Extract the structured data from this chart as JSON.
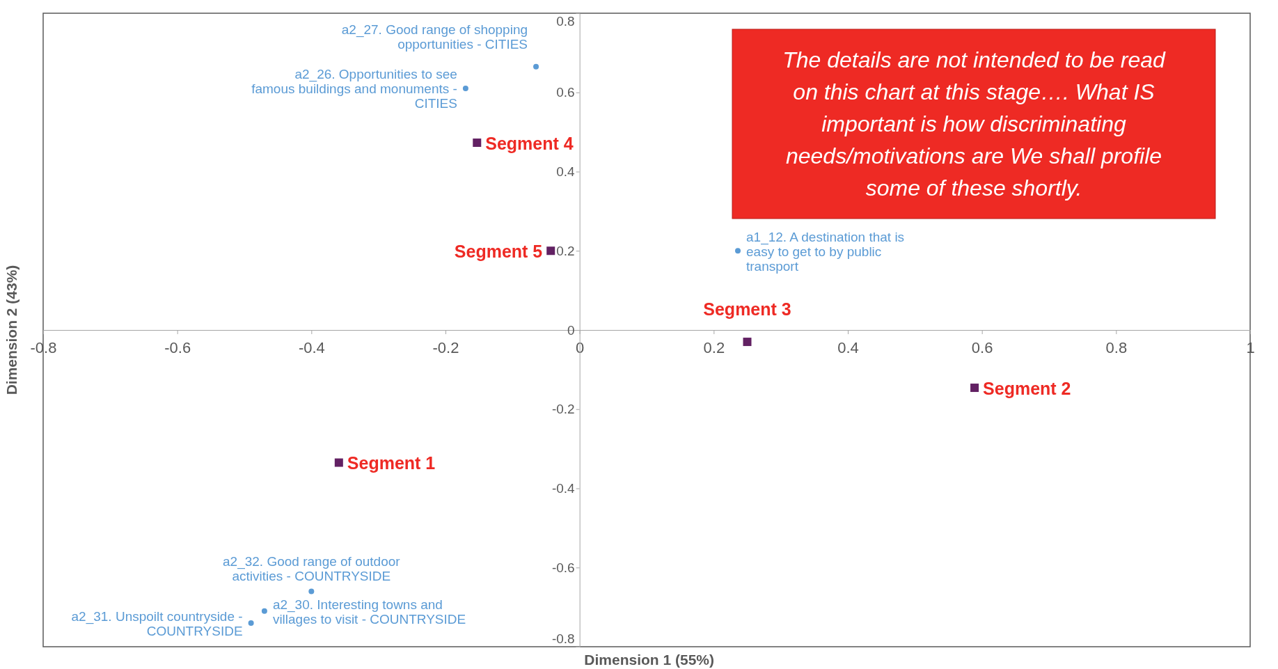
{
  "chart_data": {
    "type": "scatter",
    "xlabel": "Dimension 1 (55%)",
    "ylabel": "Dimension 2 (43%)",
    "xlim": [
      -0.8,
      1
    ],
    "ylim": [
      -0.8,
      0.8
    ],
    "xticks": [
      -0.8,
      -0.6,
      -0.4,
      -0.2,
      0,
      0.2,
      0.4,
      0.6,
      0.8,
      1
    ],
    "yticks": [
      -0.8,
      -0.6,
      -0.4,
      -0.2,
      0,
      0.2,
      0.4,
      0.6,
      0.8
    ],
    "series": [
      {
        "color": "#5b9bd5",
        "marker": "circle",
        "x": [
          -0.4,
          -0.47,
          -0.49,
          -0.17,
          -0.065,
          0.236
        ],
        "values": [
          -0.66,
          -0.71,
          -0.74,
          0.61,
          0.665,
          0.2
        ],
        "value_labels": [
          "a2_32. Good range of outdoor activities - COUNTRYSIDE",
          "a2_30. Interesting towns and villages to visit - COUNTRYSIDE",
          "a2_31. Unspoilt countryside - COUNTRYSIDE",
          "a2_26. Opportunities to see famous buildings and monuments - CITIES",
          "a2_27. Good range of shopping opportunities - CITIES",
          "a1_12. A destination that is easy to get to by public transport"
        ]
      },
      {
        "color": "#622163",
        "marker": "square",
        "x": [
          -0.359,
          0.589,
          0.25,
          -0.153,
          -0.043
        ],
        "values": [
          -0.335,
          -0.146,
          -0.03,
          0.473,
          0.2
        ],
        "value_labels": [
          "Segment 1",
          "Segment 2",
          "Segment 3",
          "Segment 4",
          "Segment 5"
        ]
      }
    ],
    "annotations": [
      "The details are not intended to be read on this chart at this stage…. What IS important is how discriminating needs/motivations are We shall profile some of these shortly."
    ]
  }
}
